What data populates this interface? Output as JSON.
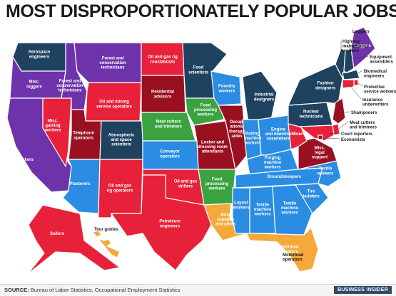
{
  "title": "MOST DISPROPORTIONATELY POPULAR JOBS",
  "colors": {
    "navy": "#1f4260",
    "purple": "#6e33aa",
    "red": "#e8213a",
    "darkred": "#991020",
    "green": "#3aa23f",
    "blue": "#2a8ce3",
    "orange": "#f4a93a",
    "border": "#ffffff"
  },
  "regions": [
    {
      "name": "washington",
      "job": "Aerospace engineers",
      "color": "navy"
    },
    {
      "name": "oregon",
      "job": "Misc. loggers",
      "color": "purple"
    },
    {
      "name": "california",
      "job": "Farmworkers",
      "color": "purple"
    },
    {
      "name": "nevada",
      "job": "Misc. gaming workers",
      "color": "red"
    },
    {
      "name": "idaho",
      "job": "Forest and conservation technicians",
      "color": "purple"
    },
    {
      "name": "montana",
      "job": "Forest and conservation technicians",
      "color": "purple"
    },
    {
      "name": "wyoming",
      "job": "Oil and mining service operators",
      "color": "red"
    },
    {
      "name": "utah",
      "job": "Telephone operators",
      "color": "darkred"
    },
    {
      "name": "colorado",
      "job": "Atmospheric and space scientists",
      "color": "navy"
    },
    {
      "name": "arizona",
      "job": "Plasterers",
      "color": "blue"
    },
    {
      "name": "new-mexico",
      "job": "Oil and gas rig operators",
      "color": "red"
    },
    {
      "name": "north-dakota",
      "job": "Oil and gas rig roustabouts",
      "color": "red"
    },
    {
      "name": "south-dakota",
      "job": "Residential advisors",
      "color": "darkred"
    },
    {
      "name": "nebraska",
      "job": "Meat cutters and trimmers",
      "color": "green"
    },
    {
      "name": "kansas",
      "job": "Conveyor operators",
      "color": "blue"
    },
    {
      "name": "oklahoma",
      "job": "Oil and gas drillers",
      "color": "red"
    },
    {
      "name": "texas",
      "job": "Petroleum engineers",
      "color": "red"
    },
    {
      "name": "minnesota",
      "job": "Food scientists",
      "color": "navy"
    },
    {
      "name": "iowa",
      "job": "Food processing workers",
      "color": "green"
    },
    {
      "name": "missouri",
      "job": "Locker and dressing room attendants",
      "color": "darkred"
    },
    {
      "name": "arkansas",
      "job": "Food processing workers",
      "color": "green"
    },
    {
      "name": "louisiana",
      "job": "Boat captains and pilots",
      "color": "orange"
    },
    {
      "name": "wisconsin",
      "job": "Foundry workers",
      "color": "blue"
    },
    {
      "name": "illinois",
      "job": "Occupational therapy aides",
      "color": "darkred"
    },
    {
      "name": "michigan",
      "job": "Industrial designers",
      "color": "navy"
    },
    {
      "name": "indiana",
      "job": "Rolling machine workers",
      "color": "blue"
    },
    {
      "name": "ohio",
      "job": "Engine and machine assemblers",
      "color": "blue"
    },
    {
      "name": "kentucky",
      "job": "Forging machine workers",
      "color": "blue"
    },
    {
      "name": "tennessee",
      "job": "Groundskeepers",
      "color": "blue"
    },
    {
      "name": "mississippi",
      "job": "Layout workers",
      "color": "blue"
    },
    {
      "name": "alabama",
      "job": "Textile machine workers",
      "color": "blue"
    },
    {
      "name": "georgia",
      "job": "Textile machine workers",
      "color": "blue"
    },
    {
      "name": "florida",
      "job": "Motorboat operators",
      "color": "orange"
    },
    {
      "name": "south-carolina",
      "job": "Tire builders",
      "color": "blue"
    },
    {
      "name": "north-carolina",
      "job": "Textile workers",
      "color": "blue"
    },
    {
      "name": "virginia",
      "job": "Misc. legal support",
      "color": "darkred"
    },
    {
      "name": "west-virginia",
      "job": "Miners",
      "color": "red"
    },
    {
      "name": "pennsylvania",
      "job": "Nuclear technicians",
      "color": "navy"
    },
    {
      "name": "new-york",
      "job": "Fashion designers",
      "color": "navy"
    },
    {
      "name": "vermont",
      "job": "Highway maintenance workers",
      "color": "navy"
    },
    {
      "name": "new-hampshire",
      "job": "Equipment assemblers",
      "color": "navy"
    },
    {
      "name": "maine",
      "job": "Loggers",
      "color": "purple"
    },
    {
      "name": "massachusetts",
      "job": "Biomedical engineers",
      "color": "navy"
    },
    {
      "name": "rhode-island",
      "job": "Protective service workers",
      "color": "red"
    },
    {
      "name": "connecticut",
      "job": "Insurance underwriters",
      "color": "red"
    },
    {
      "name": "new-jersey",
      "job": "Shampooers",
      "color": "darkred"
    },
    {
      "name": "delaware",
      "job": "Meat cutters and trimmers",
      "color": "red"
    },
    {
      "name": "maryland",
      "job": "Court reporters",
      "color": "red"
    },
    {
      "name": "dc",
      "job": "Economists",
      "color": "darkred"
    },
    {
      "name": "alaska",
      "job": "Tour guides",
      "color": "red"
    },
    {
      "name": "hawaii",
      "job": "Sailors",
      "color": "orange"
    }
  ],
  "callouts": [
    "Highway maintenance workers",
    "Loggers",
    "Equipment assemblers",
    "Biomedical engineers",
    "Protective service workers",
    "Insurance underwriters",
    "Shampooers",
    "Meat cutters and trimmers",
    "Court reporters",
    "Economists",
    "Tour guides",
    "Motorboat operators"
  ],
  "source_label": "SOURCE:",
  "source_text": "Bureau of Labor Statistics, Occupational Employment Statistics",
  "logo_text": "BUSINESS INSIDER"
}
